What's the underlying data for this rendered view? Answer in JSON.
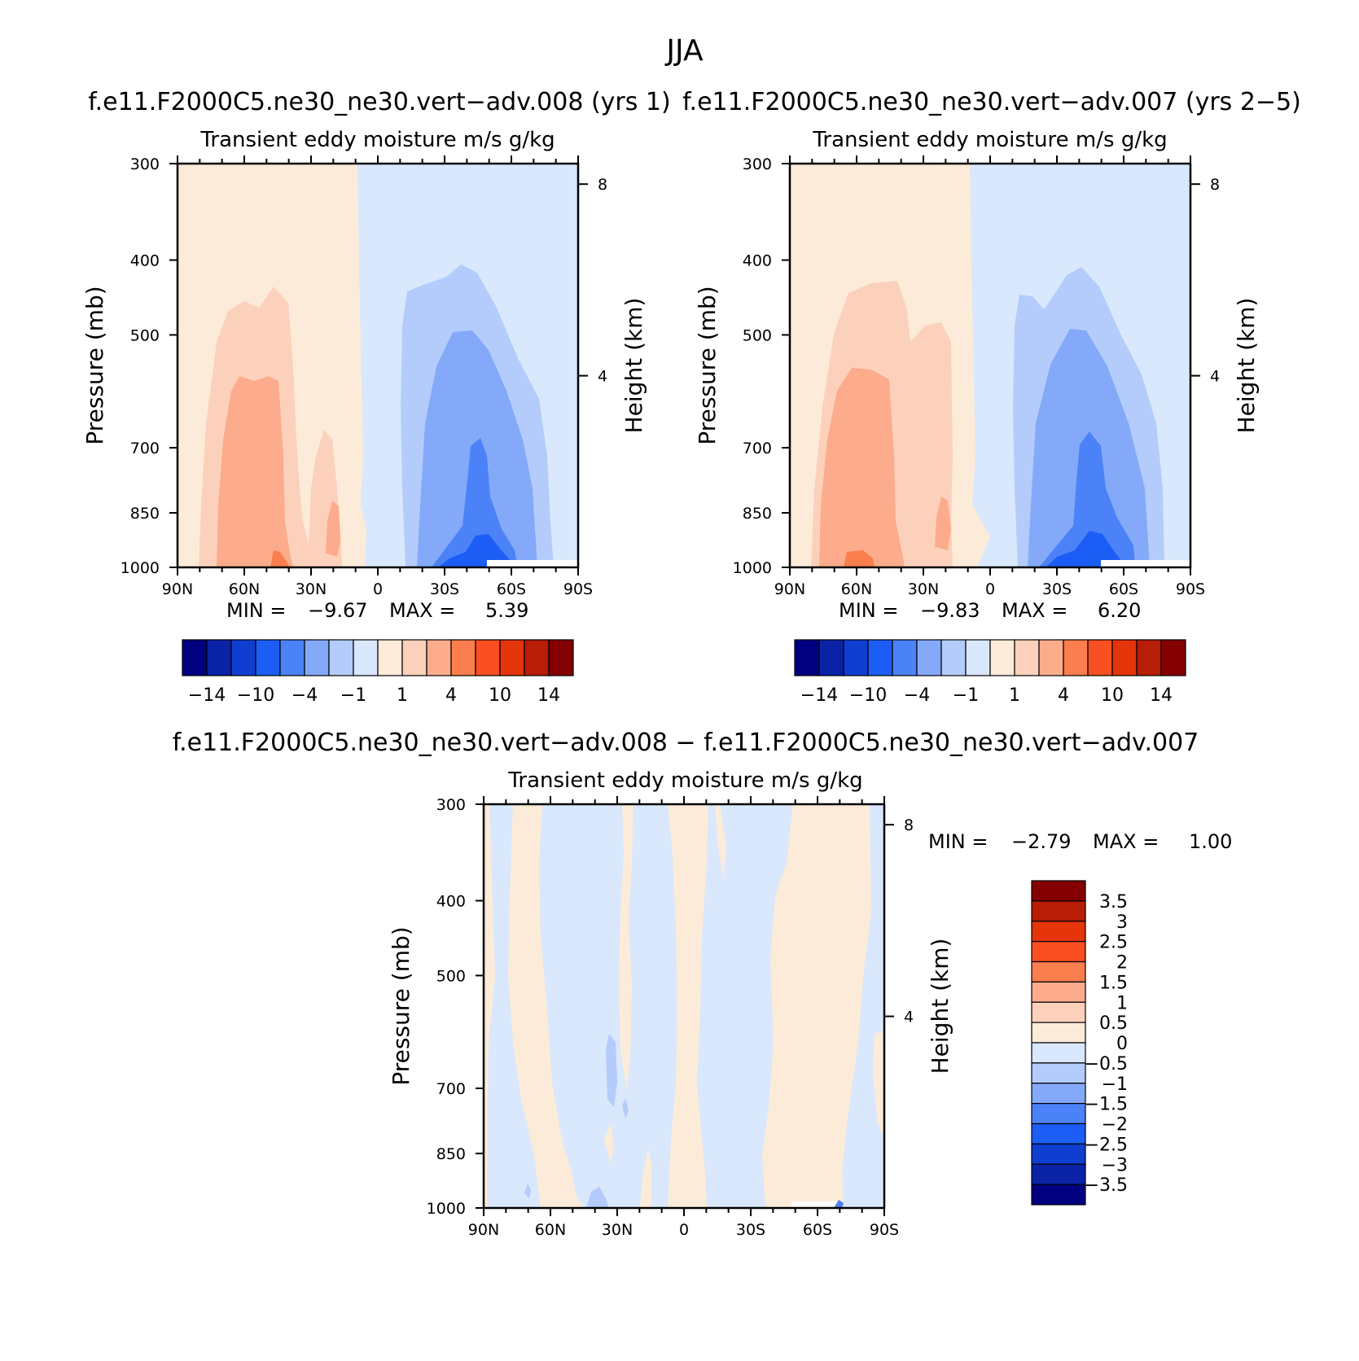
{
  "figure": {
    "title": "JJA"
  },
  "colors": {
    "scale14": [
      "#000080",
      "#0a22a6",
      "#0f3ed0",
      "#1c5ef5",
      "#4b82f8",
      "#85a9f9",
      "#b3ccfb",
      "#d9e8fc",
      "#fdebd9",
      "#fcd1bb",
      "#fcac8c",
      "#fb7e4e",
      "#f94f22",
      "#e4340a",
      "#b71d07",
      "#840000"
    ]
  },
  "chart_data": [
    {
      "type": "heatmap",
      "id": "panel1",
      "title": "f.e11.F2000C5.ne30_ne30.vert−adv.008 (yrs 1)",
      "subtitle": "Transient eddy moisture m/s g/kg",
      "xlabel": "",
      "ylabel": "Pressure (mb)",
      "ylabel_right": "Height (km)",
      "x_ticks": [
        "90N",
        "60N",
        "30N",
        "0",
        "30S",
        "60S",
        "90S"
      ],
      "x_values": [
        90,
        60,
        30,
        0,
        -30,
        -60,
        -90
      ],
      "y_ticks": [
        "300",
        "400",
        "500",
        "700",
        "850",
        "1000"
      ],
      "y_values": [
        300,
        400,
        500,
        700,
        850,
        1000
      ],
      "right_ticks": [
        "8",
        "4"
      ],
      "right_values_km": [
        8,
        4
      ],
      "ylim": [
        1000,
        300
      ],
      "min_label": "MIN =",
      "min_value": "−9.67",
      "max_label": "MAX =",
      "max_value": "5.39",
      "colorbar_labels": [
        "−14",
        "−10",
        "−4",
        "−1",
        "1",
        "4",
        "10",
        "14"
      ],
      "colorbar_label_positions": [
        1,
        3,
        5,
        7,
        9,
        11,
        13,
        15
      ]
    },
    {
      "type": "heatmap",
      "id": "panel2",
      "title": "f.e11.F2000C5.ne30_ne30.vert−adv.007 (yrs 2−5)",
      "subtitle": "Transient eddy moisture m/s g/kg",
      "xlabel": "",
      "ylabel": "Pressure (mb)",
      "ylabel_right": "Height (km)",
      "x_ticks": [
        "90N",
        "60N",
        "30N",
        "0",
        "30S",
        "60S",
        "90S"
      ],
      "x_values": [
        90,
        60,
        30,
        0,
        -30,
        -60,
        -90
      ],
      "y_ticks": [
        "300",
        "400",
        "500",
        "700",
        "850",
        "1000"
      ],
      "y_values": [
        300,
        400,
        500,
        700,
        850,
        1000
      ],
      "right_ticks": [
        "8",
        "4"
      ],
      "right_values_km": [
        8,
        4
      ],
      "ylim": [
        1000,
        300
      ],
      "min_label": "MIN =",
      "min_value": "−9.83",
      "max_label": "MAX =",
      "max_value": "6.20",
      "colorbar_labels": [
        "−14",
        "−10",
        "−4",
        "−1",
        "1",
        "4",
        "10",
        "14"
      ],
      "colorbar_label_positions": [
        1,
        3,
        5,
        7,
        9,
        11,
        13,
        15
      ]
    },
    {
      "type": "heatmap",
      "id": "panel3",
      "title": "f.e11.F2000C5.ne30_ne30.vert−adv.008 − f.e11.F2000C5.ne30_ne30.vert−adv.007",
      "subtitle": "Transient eddy moisture m/s g/kg",
      "xlabel": "",
      "ylabel": "Pressure (mb)",
      "ylabel_right": "Height (km)",
      "x_ticks": [
        "90N",
        "60N",
        "30N",
        "0",
        "30S",
        "60S",
        "90S"
      ],
      "x_values": [
        90,
        60,
        30,
        0,
        -30,
        -60,
        -90
      ],
      "y_ticks": [
        "300",
        "400",
        "500",
        "700",
        "850",
        "1000"
      ],
      "y_values": [
        300,
        400,
        500,
        700,
        850,
        1000
      ],
      "right_ticks": [
        "8",
        "4"
      ],
      "right_values_km": [
        8,
        4
      ],
      "ylim": [
        1000,
        300
      ],
      "min_label": "MIN =",
      "min_value": "−2.79",
      "max_label": "MAX =",
      "max_value": "1.00",
      "colorbar_labels": [
        "3.5",
        "3",
        "2.5",
        "2",
        "1.5",
        "1",
        "0.5",
        "0",
        "−0.5",
        "−1",
        "−1.5",
        "−2",
        "−2.5",
        "−3",
        "−3.5"
      ]
    }
  ]
}
